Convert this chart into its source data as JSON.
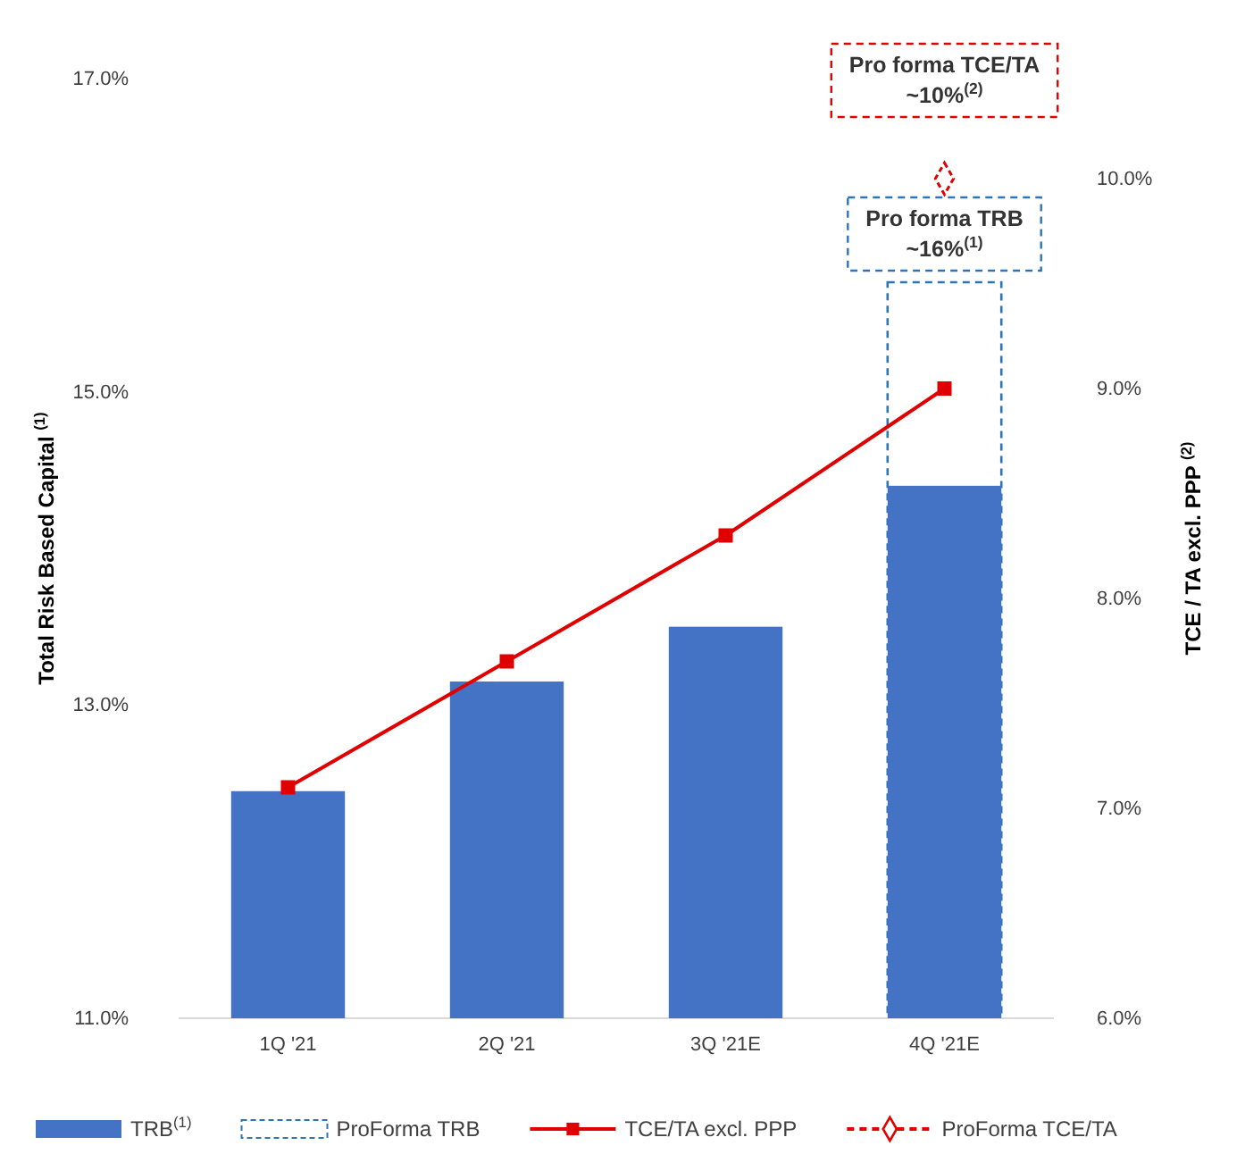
{
  "chart_data": {
    "type": "bar",
    "ylabel": "Total Risk Based Capital $^{(1)}$",
    "y2label": "TCE / TA excl. PPP $^{(2)}$",
    "categories": [
      "1Q '21",
      "2Q '21",
      "3Q '21E",
      "4Q '21E"
    ],
    "series": [
      {
        "name": "TRB$^{(1)}$",
        "type": "bar",
        "color": "#4472c4",
        "values": [
          12.45,
          13.15,
          13.5,
          14.4
        ]
      },
      {
        "name": "ProForma TRB",
        "color": "#2e75b6",
        "line_style": "dashed",
        "values": [
          null,
          null,
          null,
          15.7
        ]
      },
      {
        "name": "TCE/TA excl. PPP",
        "type": "line",
        "axis": "y2",
        "color": "#e00000",
        "marker": "square",
        "line_style": "solid",
        "values": [
          7.1,
          7.7,
          8.3,
          9.0
        ]
      },
      {
        "name": "ProForma TCE/TA",
        "type": "line",
        "axis": "y2",
        "color": "#e00000",
        "marker": "diamond",
        "line_style": "dashed",
        "values": [
          null,
          null,
          null,
          10.0
        ]
      }
    ],
    "ylim": [
      11,
      17
    ],
    "yticks": [
      {
        "value": 11,
        "label": "11.0%"
      },
      {
        "value": 13,
        "label": "13.0%"
      },
      {
        "value": 15,
        "label": "15.0%"
      },
      {
        "value": 17,
        "label": "17.0%"
      }
    ],
    "y2lim": [
      6,
      10
    ],
    "y2ticks": [
      {
        "value": 6,
        "label": "6.0%"
      },
      {
        "value": 7,
        "label": "7.0%"
      },
      {
        "value": 8,
        "label": "8.0%"
      },
      {
        "value": 9,
        "label": "9.0%"
      },
      {
        "value": 10,
        "label": "10.0%"
      }
    ],
    "annotations": [
      "Pro forma TRB\n~16%$^{(1)}$",
      "Pro forma TCE/TA\n~10%$^{(2)}$"
    ],
    "grid": false,
    "legend": "bottom"
  }
}
